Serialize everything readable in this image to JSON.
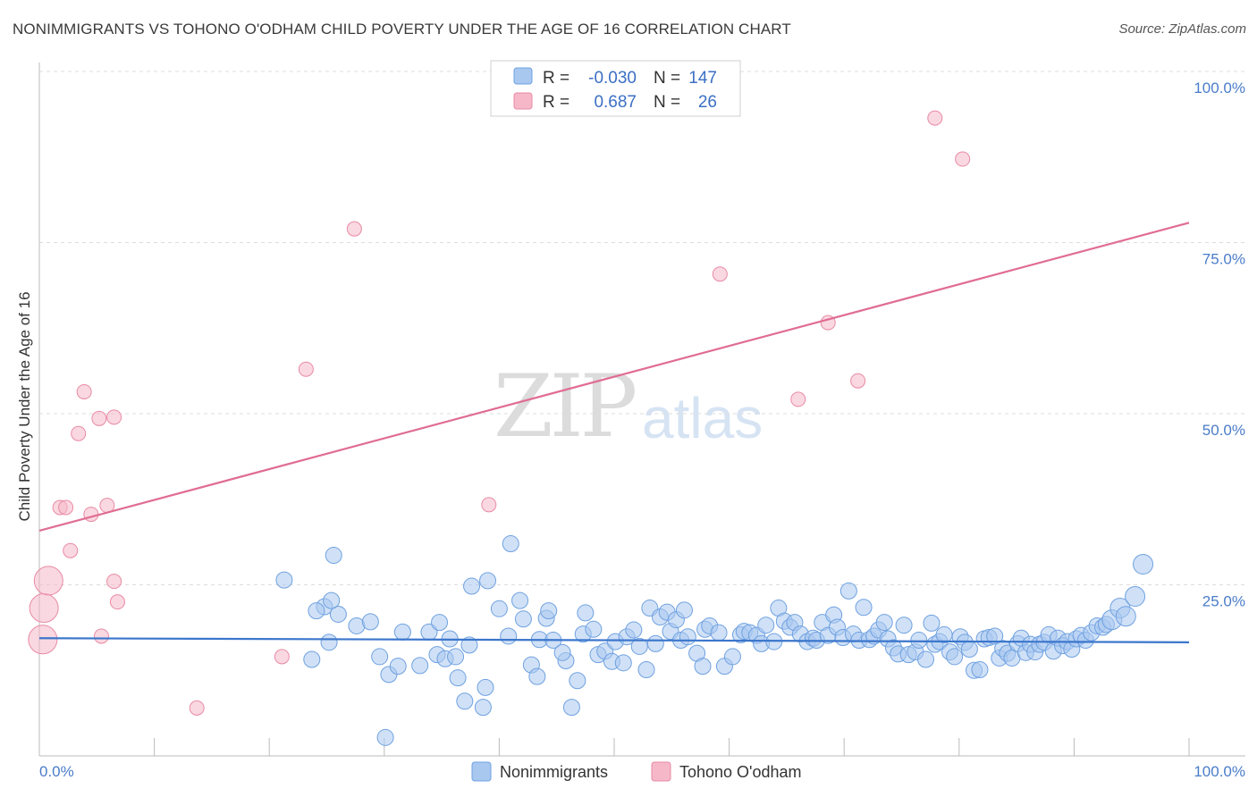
{
  "title": "NONIMMIGRANTS VS TOHONO O'ODHAM CHILD POVERTY UNDER THE AGE OF 16 CORRELATION CHART",
  "source": "Source: ZipAtlas.com",
  "watermark": {
    "zip": "ZIP",
    "atlas": "atlas"
  },
  "legend": {
    "rows": [
      {
        "r_label": "R =",
        "r_value": "-0.030",
        "n_label": "N =",
        "n_value": "147",
        "color": "#a9c8f0"
      },
      {
        "r_label": "R =",
        "r_value": "0.687",
        "n_label": "N =",
        "n_value": "26",
        "color": "#f6b8c9"
      }
    ]
  },
  "bottom_legend": [
    {
      "name": "Nonimmigrants",
      "color": "#a9c8f0"
    },
    {
      "name": "Tohono O'odham",
      "color": "#f6b8c9"
    }
  ],
  "chart_data": {
    "type": "scatter",
    "title": "NONIMMIGRANTS VS TOHONO O'ODHAM CHILD POVERTY UNDER THE AGE OF 16 CORRELATION CHART",
    "xlabel": "",
    "ylabel": "Child Poverty Under the Age of 16",
    "xlim": [
      0,
      100
    ],
    "ylim": [
      0,
      100
    ],
    "x_tick_labels": [
      "0.0%",
      "100.0%"
    ],
    "y_ticks": [
      25,
      50,
      75,
      100
    ],
    "y_tick_labels": [
      "25.0%",
      "50.0%",
      "75.0%",
      "100.0%"
    ],
    "grid": "horizontal dashed",
    "legend_placement": "top-center",
    "series": [
      {
        "name": "Nonimmigrants",
        "color": "#6fa1e0",
        "fill": "#a9c8f0",
        "trend": {
          "x": [
            0,
            100
          ],
          "y": [
            17.2,
            16.6
          ]
        },
        "points": [
          [
            21.3,
            25.7
          ],
          [
            25.6,
            29.3
          ],
          [
            24.8,
            21.8
          ],
          [
            26.0,
            20.7
          ],
          [
            25.2,
            16.6
          ],
          [
            25.4,
            22.7
          ],
          [
            24.1,
            21.2
          ],
          [
            23.7,
            14.1
          ],
          [
            27.6,
            19.0
          ],
          [
            28.8,
            19.6
          ],
          [
            29.6,
            14.5
          ],
          [
            30.4,
            11.9
          ],
          [
            30.1,
            2.7
          ],
          [
            31.2,
            13.1
          ],
          [
            31.6,
            18.1
          ],
          [
            33.1,
            13.2
          ],
          [
            33.9,
            18.1
          ],
          [
            34.6,
            14.8
          ],
          [
            34.8,
            19.5
          ],
          [
            35.3,
            14.2
          ],
          [
            35.7,
            17.1
          ],
          [
            36.2,
            14.5
          ],
          [
            36.4,
            11.4
          ],
          [
            37.0,
            8.0
          ],
          [
            37.4,
            16.2
          ],
          [
            37.6,
            24.8
          ],
          [
            38.6,
            7.1
          ],
          [
            38.8,
            10.0
          ],
          [
            39.0,
            25.6
          ],
          [
            40.0,
            21.5
          ],
          [
            41.0,
            31.0
          ],
          [
            42.1,
            20.0
          ],
          [
            41.8,
            22.7
          ],
          [
            40.8,
            17.5
          ],
          [
            42.8,
            13.3
          ],
          [
            43.3,
            11.6
          ],
          [
            43.5,
            17.0
          ],
          [
            44.1,
            20.1
          ],
          [
            44.3,
            21.2
          ],
          [
            44.7,
            16.9
          ],
          [
            45.8,
            13.9
          ],
          [
            45.5,
            15.1
          ],
          [
            46.3,
            7.1
          ],
          [
            46.8,
            11.0
          ],
          [
            47.3,
            17.8
          ],
          [
            47.5,
            20.9
          ],
          [
            48.2,
            18.5
          ],
          [
            48.6,
            14.8
          ],
          [
            49.2,
            15.3
          ],
          [
            49.8,
            13.8
          ],
          [
            50.1,
            16.7
          ],
          [
            50.8,
            13.6
          ],
          [
            51.1,
            17.4
          ],
          [
            51.7,
            18.4
          ],
          [
            52.2,
            16.0
          ],
          [
            52.8,
            12.6
          ],
          [
            53.1,
            21.6
          ],
          [
            53.6,
            16.4
          ],
          [
            54.0,
            20.3
          ],
          [
            54.6,
            21.0
          ],
          [
            54.9,
            18.2
          ],
          [
            55.4,
            19.9
          ],
          [
            55.8,
            16.9
          ],
          [
            56.1,
            21.3
          ],
          [
            56.4,
            17.4
          ],
          [
            57.2,
            15.0
          ],
          [
            57.7,
            13.1
          ],
          [
            57.9,
            18.5
          ],
          [
            58.3,
            19.0
          ],
          [
            59.1,
            18.0
          ],
          [
            59.6,
            13.1
          ],
          [
            60.3,
            14.5
          ],
          [
            61.0,
            17.7
          ],
          [
            61.3,
            18.2
          ],
          [
            61.8,
            18.0
          ],
          [
            62.4,
            17.6
          ],
          [
            62.8,
            16.4
          ],
          [
            63.2,
            19.1
          ],
          [
            63.9,
            16.7
          ],
          [
            64.3,
            21.6
          ],
          [
            64.8,
            19.7
          ],
          [
            65.3,
            18.8
          ],
          [
            65.7,
            19.5
          ],
          [
            66.2,
            17.8
          ],
          [
            66.8,
            16.7
          ],
          [
            67.3,
            17.2
          ],
          [
            67.6,
            16.9
          ],
          [
            68.1,
            19.5
          ],
          [
            68.6,
            17.6
          ],
          [
            69.1,
            20.6
          ],
          [
            69.4,
            18.8
          ],
          [
            69.9,
            17.3
          ],
          [
            70.4,
            24.1
          ],
          [
            70.8,
            17.8
          ],
          [
            71.3,
            16.9
          ],
          [
            71.7,
            21.7
          ],
          [
            72.2,
            17.0
          ],
          [
            72.6,
            17.5
          ],
          [
            73.0,
            18.4
          ],
          [
            73.5,
            19.5
          ],
          [
            73.8,
            17.1
          ],
          [
            74.3,
            15.8
          ],
          [
            74.7,
            14.9
          ],
          [
            75.2,
            19.1
          ],
          [
            75.6,
            14.8
          ],
          [
            76.2,
            15.2
          ],
          [
            76.5,
            16.9
          ],
          [
            77.1,
            14.1
          ],
          [
            77.6,
            19.4
          ],
          [
            77.9,
            16.3
          ],
          [
            78.3,
            16.7
          ],
          [
            78.7,
            17.7
          ],
          [
            79.2,
            15.2
          ],
          [
            79.6,
            14.5
          ],
          [
            80.1,
            17.4
          ],
          [
            80.5,
            16.6
          ],
          [
            80.9,
            15.6
          ],
          [
            81.3,
            12.5
          ],
          [
            81.8,
            12.6
          ],
          [
            82.2,
            17.1
          ],
          [
            82.6,
            17.3
          ],
          [
            83.1,
            17.5
          ],
          [
            83.5,
            14.3
          ],
          [
            83.8,
            15.7
          ],
          [
            84.2,
            15.0
          ],
          [
            84.6,
            14.3
          ],
          [
            85.1,
            16.4
          ],
          [
            85.4,
            17.2
          ],
          [
            85.8,
            15.1
          ],
          [
            86.2,
            16.3
          ],
          [
            86.6,
            15.2
          ],
          [
            87.0,
            16.3
          ],
          [
            87.4,
            16.6
          ],
          [
            87.8,
            17.7
          ],
          [
            88.2,
            15.3
          ],
          [
            88.6,
            17.2
          ],
          [
            89.0,
            16.1
          ],
          [
            89.4,
            16.7
          ],
          [
            89.8,
            15.6
          ],
          [
            90.2,
            17.1
          ],
          [
            90.6,
            17.6
          ],
          [
            91.0,
            16.9
          ],
          [
            91.5,
            18.0
          ],
          [
            92.0,
            19.0
          ],
          [
            92.5,
            18.8
          ],
          [
            92.8,
            19.2
          ],
          [
            93.3,
            19.9
          ],
          [
            94.0,
            21.6
          ],
          [
            94.5,
            20.4
          ],
          [
            95.3,
            23.3
          ],
          [
            96.0,
            28.0
          ]
        ]
      },
      {
        "name": "Tohono O'odham",
        "color": "#e88aa4",
        "fill": "#f6b8c9",
        "trend": {
          "x": [
            0,
            100
          ],
          "y": [
            32.9,
            77.9
          ]
        },
        "points": [
          [
            0.3,
            17.0
          ],
          [
            0.4,
            21.6
          ],
          [
            0.8,
            25.6
          ],
          [
            1.8,
            36.3
          ],
          [
            2.3,
            36.3
          ],
          [
            2.7,
            30.0
          ],
          [
            3.4,
            47.1
          ],
          [
            3.9,
            53.2
          ],
          [
            4.5,
            35.3
          ],
          [
            5.2,
            49.3
          ],
          [
            5.4,
            17.5
          ],
          [
            5.9,
            36.6
          ],
          [
            6.5,
            25.5
          ],
          [
            6.8,
            22.5
          ],
          [
            6.5,
            49.5
          ],
          [
            21.1,
            14.5
          ],
          [
            23.2,
            56.5
          ],
          [
            27.4,
            77.0
          ],
          [
            13.7,
            7.0
          ],
          [
            39.1,
            36.7
          ],
          [
            59.2,
            70.4
          ],
          [
            66.0,
            52.1
          ],
          [
            68.6,
            63.3
          ],
          [
            71.2,
            54.8
          ],
          [
            80.3,
            87.2
          ],
          [
            77.9,
            93.2
          ]
        ]
      }
    ]
  }
}
